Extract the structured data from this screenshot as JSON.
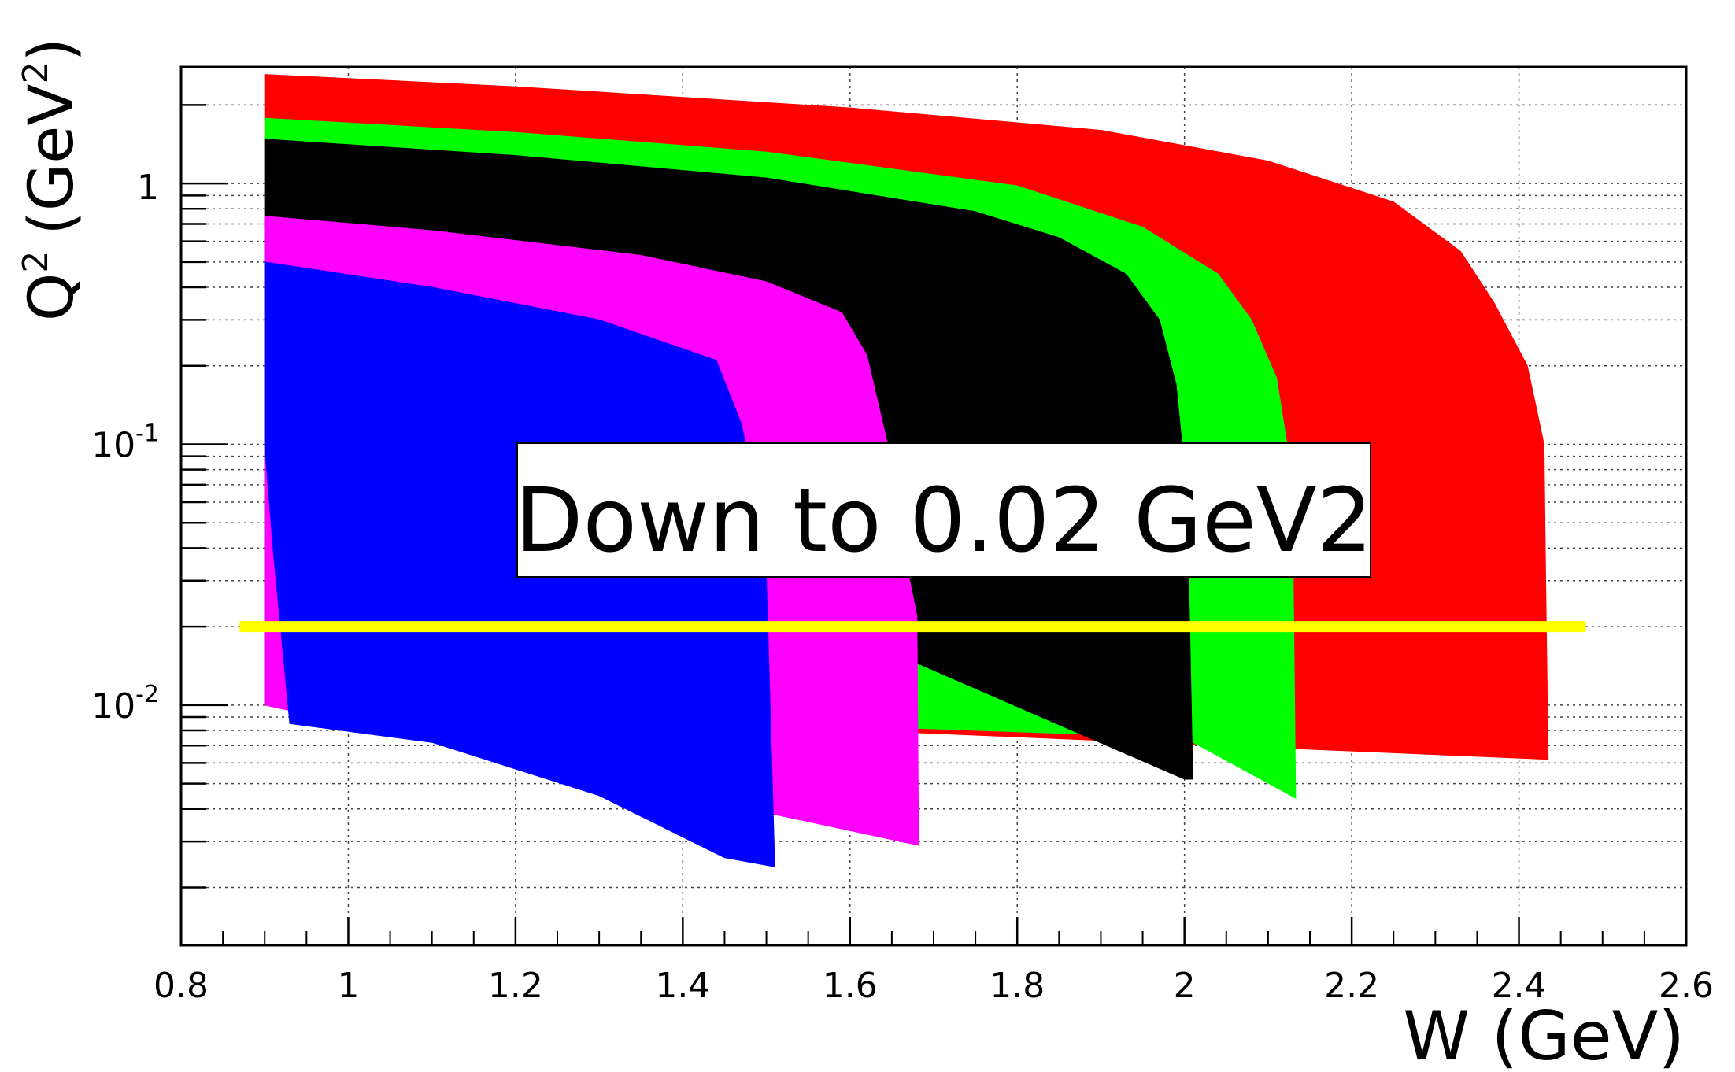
{
  "chart_data": {
    "type": "area",
    "xlabel": "W (GeV)",
    "ylabel_main": "Q",
    "ylabel_sup1": "2",
    "ylabel_unit": "(GeV",
    "ylabel_sup2": "2",
    "ylabel_close": ")",
    "xlim": [
      0.8,
      2.6
    ],
    "ylim": [
      0.0012,
      2.8
    ],
    "yscale": "log",
    "grid": true,
    "x_ticks": [
      0.8,
      1,
      1.2,
      1.4,
      1.6,
      1.8,
      2,
      2.2,
      2.4,
      2.6
    ],
    "x_tick_labels": [
      "0.8",
      "1",
      "1.2",
      "1.4",
      "1.6",
      "1.8",
      "2",
      "2.2",
      "2.4",
      "2.6"
    ],
    "y_ticks": [
      {
        "value": 1,
        "base": "1",
        "exp": ""
      },
      {
        "value": 0.1,
        "base": "10",
        "exp": "-1"
      },
      {
        "value": 0.01,
        "base": "10",
        "exp": "-2"
      }
    ],
    "series": [
      {
        "color": "#ff0000",
        "upper": [
          [
            0.9,
            2.62
          ],
          [
            1.2,
            2.35
          ],
          [
            1.6,
            1.95
          ],
          [
            1.9,
            1.6
          ],
          [
            2.1,
            1.22
          ],
          [
            2.25,
            0.85
          ],
          [
            2.33,
            0.55
          ],
          [
            2.37,
            0.35
          ],
          [
            2.41,
            0.2
          ],
          [
            2.43,
            0.1
          ],
          [
            2.432,
            0.03
          ],
          [
            2.435,
            0.0062
          ]
        ],
        "lower": [
          [
            0.9,
            0.01
          ],
          [
            2.435,
            0.0062
          ]
        ]
      },
      {
        "color": "#00ff00",
        "upper": [
          [
            0.9,
            1.78
          ],
          [
            1.2,
            1.57
          ],
          [
            1.5,
            1.32
          ],
          [
            1.8,
            0.98
          ],
          [
            1.95,
            0.68
          ],
          [
            2.04,
            0.45
          ],
          [
            2.08,
            0.3
          ],
          [
            2.11,
            0.18
          ],
          [
            2.125,
            0.09
          ],
          [
            2.13,
            0.03
          ],
          [
            2.133,
            0.0044
          ]
        ],
        "lower": [
          [
            0.9,
            0.01
          ],
          [
            2.0,
            0.0075
          ],
          [
            2.133,
            0.0044
          ]
        ]
      },
      {
        "color": "#000000",
        "upper": [
          [
            0.9,
            1.48
          ],
          [
            1.2,
            1.28
          ],
          [
            1.5,
            1.05
          ],
          [
            1.75,
            0.78
          ],
          [
            1.85,
            0.62
          ],
          [
            1.93,
            0.45
          ],
          [
            1.97,
            0.3
          ],
          [
            1.99,
            0.17
          ],
          [
            2.0,
            0.08
          ],
          [
            2.005,
            0.03
          ],
          [
            2.01,
            0.0052
          ]
        ],
        "lower": [
          [
            0.9,
            0.01
          ],
          [
            1.68,
            0.0145
          ],
          [
            2.0,
            0.0052
          ]
        ]
      },
      {
        "color": "#ff00ff",
        "upper": [
          [
            0.9,
            0.75
          ],
          [
            1.1,
            0.66
          ],
          [
            1.35,
            0.53
          ],
          [
            1.5,
            0.42
          ],
          [
            1.59,
            0.32
          ],
          [
            1.62,
            0.22
          ],
          [
            1.645,
            0.1
          ],
          [
            1.66,
            0.045
          ],
          [
            1.68,
            0.022
          ],
          [
            1.682,
            0.0029
          ]
        ],
        "lower": [
          [
            0.9,
            0.01
          ],
          [
            1.682,
            0.0029
          ]
        ]
      },
      {
        "color": "#0000ff",
        "upper": [
          [
            0.9,
            0.5
          ],
          [
            1.1,
            0.4
          ],
          [
            1.3,
            0.3
          ],
          [
            1.44,
            0.21
          ],
          [
            1.47,
            0.12
          ],
          [
            1.49,
            0.06
          ],
          [
            1.5,
            0.03
          ],
          [
            1.51,
            0.0024
          ]
        ],
        "lower": [
          [
            0.9,
            0.1
          ],
          [
            0.91,
            0.04
          ],
          [
            0.93,
            0.0085
          ],
          [
            1.1,
            0.0072
          ],
          [
            1.3,
            0.0045
          ],
          [
            1.45,
            0.0026
          ],
          [
            1.51,
            0.0024
          ]
        ]
      }
    ],
    "reference_line": {
      "y": 0.02,
      "x_from": 0.87,
      "x_to": 2.48,
      "color": "#ffff00"
    },
    "annotation": {
      "text": "Down to 0.02 GeV2"
    }
  }
}
